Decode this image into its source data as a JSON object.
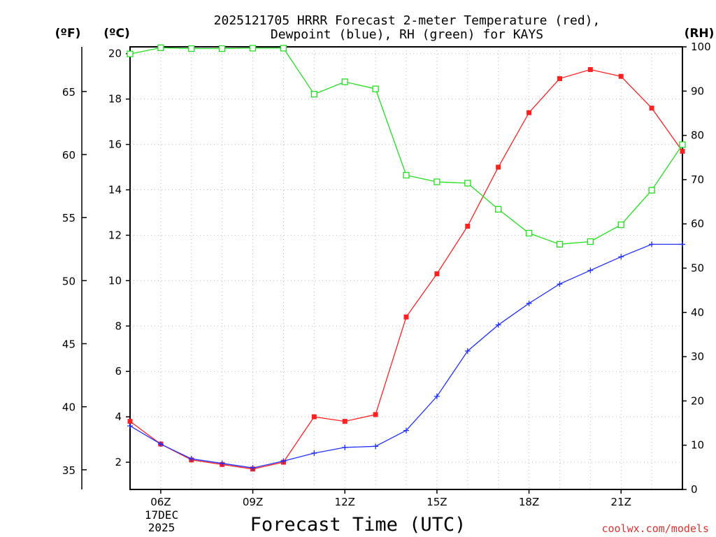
{
  "chart_data": {
    "type": "line",
    "title_line1": "2025121705 HRRR Forecast 2-meter Temperature (red),",
    "title_line2": "Dewpoint (blue), RH (green) for KAYS",
    "xlabel": "Forecast Time (UTC)",
    "unit_f": "(ºF)",
    "unit_c": "(ºC)",
    "unit_rh": "(RH)",
    "date_line1": "17DEC",
    "date_line2": "2025",
    "watermark": "coolwx.com/models",
    "x_hours": [
      5,
      6,
      7,
      8,
      9,
      10,
      11,
      12,
      13,
      14,
      15,
      16,
      17,
      18,
      19,
      20,
      21,
      22,
      23
    ],
    "xlim": [
      5,
      23
    ],
    "xticks": [
      6,
      9,
      12,
      15,
      18,
      21
    ],
    "xtick_labels": [
      "06Z",
      "09Z",
      "12Z",
      "15Z",
      "18Z",
      "21Z"
    ],
    "c_axis": {
      "lim": [
        0.8,
        20.3
      ],
      "ticks": [
        2,
        4,
        6,
        8,
        10,
        12,
        14,
        16,
        18,
        20
      ],
      "labels": [
        "2",
        "4",
        "6",
        "8",
        "10",
        "12",
        "14",
        "16",
        "18",
        "20"
      ]
    },
    "f_axis": {
      "ticks": [
        35,
        40,
        45,
        50,
        55,
        60,
        65
      ],
      "labels": [
        "35",
        "40",
        "45",
        "50",
        "55",
        "60",
        "65"
      ]
    },
    "rh_axis": {
      "lim": [
        0,
        100
      ],
      "ticks": [
        0,
        10,
        20,
        30,
        40,
        50,
        60,
        70,
        80,
        90,
        100
      ],
      "labels": [
        "0",
        "10",
        "20",
        "30",
        "40",
        "50",
        "60",
        "70",
        "80",
        "90",
        "100"
      ]
    },
    "series": [
      {
        "name": "Temperature",
        "axis": "c",
        "color": "#ff2020",
        "marker": "filled-square",
        "values": [
          3.8,
          2.8,
          2.1,
          1.9,
          1.7,
          2.0,
          4.0,
          3.8,
          4.1,
          8.4,
          10.3,
          12.4,
          15.0,
          17.4,
          18.9,
          19.3,
          19.0,
          17.6,
          15.7
        ]
      },
      {
        "name": "Dewpoint",
        "axis": "c",
        "color": "#2030ff",
        "marker": "plus",
        "values": [
          3.6,
          2.8,
          2.15,
          1.95,
          1.75,
          2.05,
          2.4,
          2.65,
          2.7,
          3.4,
          4.9,
          6.9,
          8.05,
          9.0,
          9.85,
          10.45,
          11.05,
          11.6,
          11.6
        ]
      },
      {
        "name": "RH",
        "axis": "rh",
        "color": "#20e020",
        "marker": "open-square",
        "values": [
          98.4,
          99.8,
          99.6,
          99.6,
          99.7,
          99.7,
          89.3,
          92.1,
          90.5,
          71.0,
          69.5,
          69.2,
          63.3,
          57.9,
          55.4,
          56.0,
          59.8,
          67.6,
          77.9
        ]
      }
    ]
  }
}
